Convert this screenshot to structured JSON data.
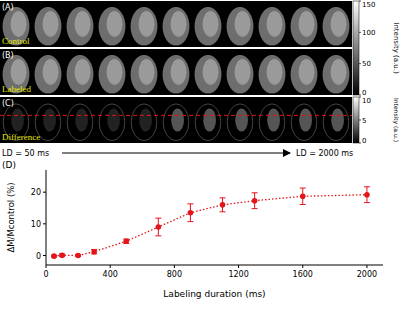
{
  "panels": [
    {
      "tag": "(A)",
      "label": "Control"
    },
    {
      "tag": "(B)",
      "label": "Labeled"
    },
    {
      "tag": "(C)",
      "label": "Difference"
    }
  ],
  "colorbars": [
    {
      "label": "Intensity (a.u.)",
      "range": [
        0,
        150
      ],
      "ticks": [
        0,
        50,
        100,
        150
      ]
    },
    {
      "label": "Intensity (a.u.)",
      "range": [
        0,
        10
      ],
      "ticks": [
        0,
        5,
        10
      ]
    }
  ],
  "ld_start": "LD = 50 ms",
  "ld_end": "LD = 2000 ms",
  "chart_data": {
    "type": "line",
    "annotation": "(D)",
    "x": [
      50,
      100,
      200,
      300,
      500,
      700,
      900,
      1100,
      1300,
      1600,
      2000
    ],
    "series": [
      {
        "color": "#e3141b",
        "marker": "circle",
        "line_style": "dotted",
        "values": [
          -0.2,
          0.1,
          0,
          1.2,
          4.5,
          9,
          13.5,
          16,
          17.3,
          18.7,
          19.2
        ],
        "errors": [
          0.3,
          0.4,
          0.3,
          0.7,
          0.7,
          2.8,
          2.8,
          2.2,
          2.5,
          2.6,
          2.5
        ]
      }
    ],
    "xlim": [
      0,
      2100
    ],
    "xticks": [
      0,
      400,
      800,
      1200,
      1600,
      2000
    ],
    "ylim": [
      -3,
      27
    ],
    "yticks": [
      0,
      10,
      20
    ],
    "x_label": "Labeling duration (ms)",
    "y_label": "ΔM/Mcontrol (%)"
  }
}
